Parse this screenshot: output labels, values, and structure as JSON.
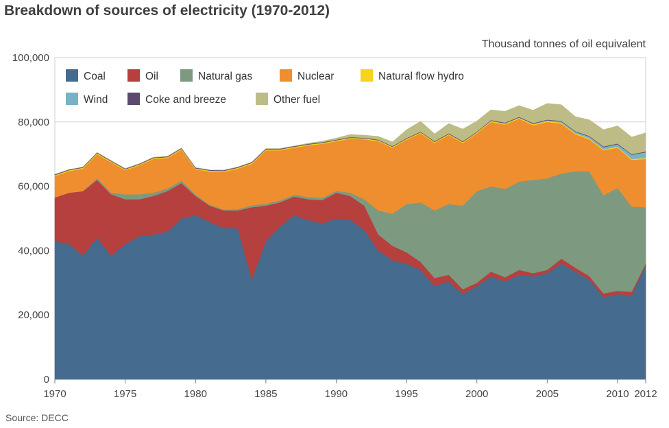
{
  "chart_data": {
    "type": "area",
    "title": "Breakdown of sources of electricity (1970-2012)",
    "units": "Thousand tonnes of oil equivalent",
    "source": "Source: DECC",
    "xlim": [
      1970,
      2012
    ],
    "ylim": [
      0,
      100000
    ],
    "x_ticks": [
      1970,
      1975,
      1980,
      1985,
      1990,
      1995,
      2000,
      2005,
      2010,
      2012
    ],
    "y_ticks": [
      0,
      20000,
      40000,
      60000,
      80000,
      100000
    ],
    "y_tick_labels": [
      "0",
      "20,000",
      "40,000",
      "60,000",
      "80,000",
      "100,000"
    ],
    "grid": true,
    "legend_position": "top-left",
    "stacked": true,
    "x": [
      1970,
      1971,
      1972,
      1973,
      1974,
      1975,
      1976,
      1977,
      1978,
      1979,
      1980,
      1981,
      1982,
      1983,
      1984,
      1985,
      1986,
      1987,
      1988,
      1989,
      1990,
      1991,
      1992,
      1993,
      1994,
      1995,
      1996,
      1997,
      1998,
      1999,
      2000,
      2001,
      2002,
      2003,
      2004,
      2005,
      2006,
      2007,
      2008,
      2009,
      2010,
      2011,
      2012
    ],
    "series": [
      {
        "name": "Coal",
        "color": "#456b8f",
        "values": [
          43000,
          42000,
          38500,
          44000,
          38500,
          42000,
          44500,
          45000,
          46000,
          50000,
          51000,
          49000,
          47000,
          47000,
          31000,
          43000,
          47500,
          51000,
          49500,
          48500,
          50000,
          49500,
          46500,
          40000,
          37000,
          36000,
          34000,
          29000,
          30500,
          26500,
          29000,
          32000,
          30500,
          32500,
          32000,
          33000,
          36000,
          33500,
          31000,
          25500,
          26500,
          26000,
          35500
        ]
      },
      {
        "name": "Oil",
        "color": "#b5403e",
        "values": [
          13500,
          16000,
          20000,
          18000,
          19000,
          14000,
          11500,
          12000,
          12500,
          11000,
          6000,
          5000,
          5500,
          5500,
          22500,
          11000,
          7500,
          5800,
          6500,
          7200,
          8000,
          7500,
          7500,
          5000,
          4500,
          3500,
          2500,
          2500,
          2000,
          1500,
          1000,
          1500,
          1200,
          1500,
          1000,
          1000,
          1500,
          1200,
          1100,
          1200,
          1000,
          1200,
          500
        ]
      },
      {
        "name": "Natural gas",
        "color": "#7d9980",
        "values": [
          0,
          0,
          0,
          500,
          500,
          1500,
          1500,
          1000,
          800,
          800,
          400,
          300,
          300,
          400,
          600,
          600,
          600,
          600,
          700,
          700,
          600,
          1000,
          2000,
          7500,
          10000,
          15000,
          18500,
          21000,
          22000,
          26000,
          28500,
          26500,
          27500,
          27500,
          29000,
          28500,
          26500,
          30000,
          32500,
          30500,
          32000,
          26500,
          17500
        ]
      },
      {
        "name": "Nuclear",
        "color": "#ef8e2f",
        "values": [
          6700,
          6700,
          7000,
          7500,
          9500,
          7500,
          9000,
          10500,
          9500,
          9600,
          7900,
          10300,
          11700,
          12600,
          12900,
          16600,
          15600,
          14600,
          16000,
          16800,
          15400,
          16800,
          18600,
          21500,
          20500,
          20000,
          21500,
          21000,
          21500,
          19500,
          18000,
          20000,
          20000,
          19500,
          17000,
          17500,
          15500,
          11500,
          10000,
          14000,
          12500,
          14500,
          15000
        ]
      },
      {
        "name": "Natural flow hydro",
        "color": "#f5d31e",
        "values": [
          300,
          300,
          300,
          300,
          300,
          300,
          300,
          300,
          300,
          300,
          300,
          300,
          300,
          300,
          300,
          300,
          300,
          300,
          300,
          300,
          300,
          300,
          300,
          300,
          300,
          300,
          300,
          300,
          300,
          300,
          300,
          300,
          300,
          300,
          300,
          300,
          300,
          300,
          300,
          300,
          300,
          300,
          300
        ]
      },
      {
        "name": "Wind",
        "color": "#79b2c5",
        "values": [
          0,
          0,
          0,
          0,
          0,
          0,
          0,
          0,
          0,
          0,
          0,
          0,
          0,
          0,
          0,
          0,
          0,
          0,
          0,
          0,
          0,
          0,
          0,
          0,
          0,
          0,
          0,
          0,
          0,
          0,
          0,
          100,
          100,
          100,
          150,
          250,
          350,
          450,
          550,
          700,
          800,
          1300,
          1800
        ]
      },
      {
        "name": "Coke and breeze",
        "color": "#5b4a6e",
        "values": [
          200,
          200,
          200,
          200,
          200,
          200,
          200,
          200,
          200,
          200,
          200,
          200,
          200,
          200,
          200,
          200,
          200,
          200,
          200,
          200,
          200,
          200,
          200,
          200,
          200,
          200,
          200,
          200,
          200,
          200,
          200,
          200,
          200,
          200,
          200,
          200,
          200,
          200,
          200,
          200,
          200,
          200,
          200
        ]
      },
      {
        "name": "Other fuel",
        "color": "#bdbc86",
        "values": [
          0,
          0,
          0,
          0,
          0,
          0,
          0,
          0,
          0,
          0,
          0,
          0,
          0,
          0,
          0,
          0,
          0,
          0,
          200,
          300,
          500,
          800,
          800,
          1000,
          1300,
          2600,
          3200,
          2300,
          3000,
          3800,
          3300,
          3200,
          3500,
          3500,
          4000,
          5000,
          5000,
          4500,
          5000,
          5200,
          5500,
          5300,
          5800
        ]
      }
    ]
  }
}
